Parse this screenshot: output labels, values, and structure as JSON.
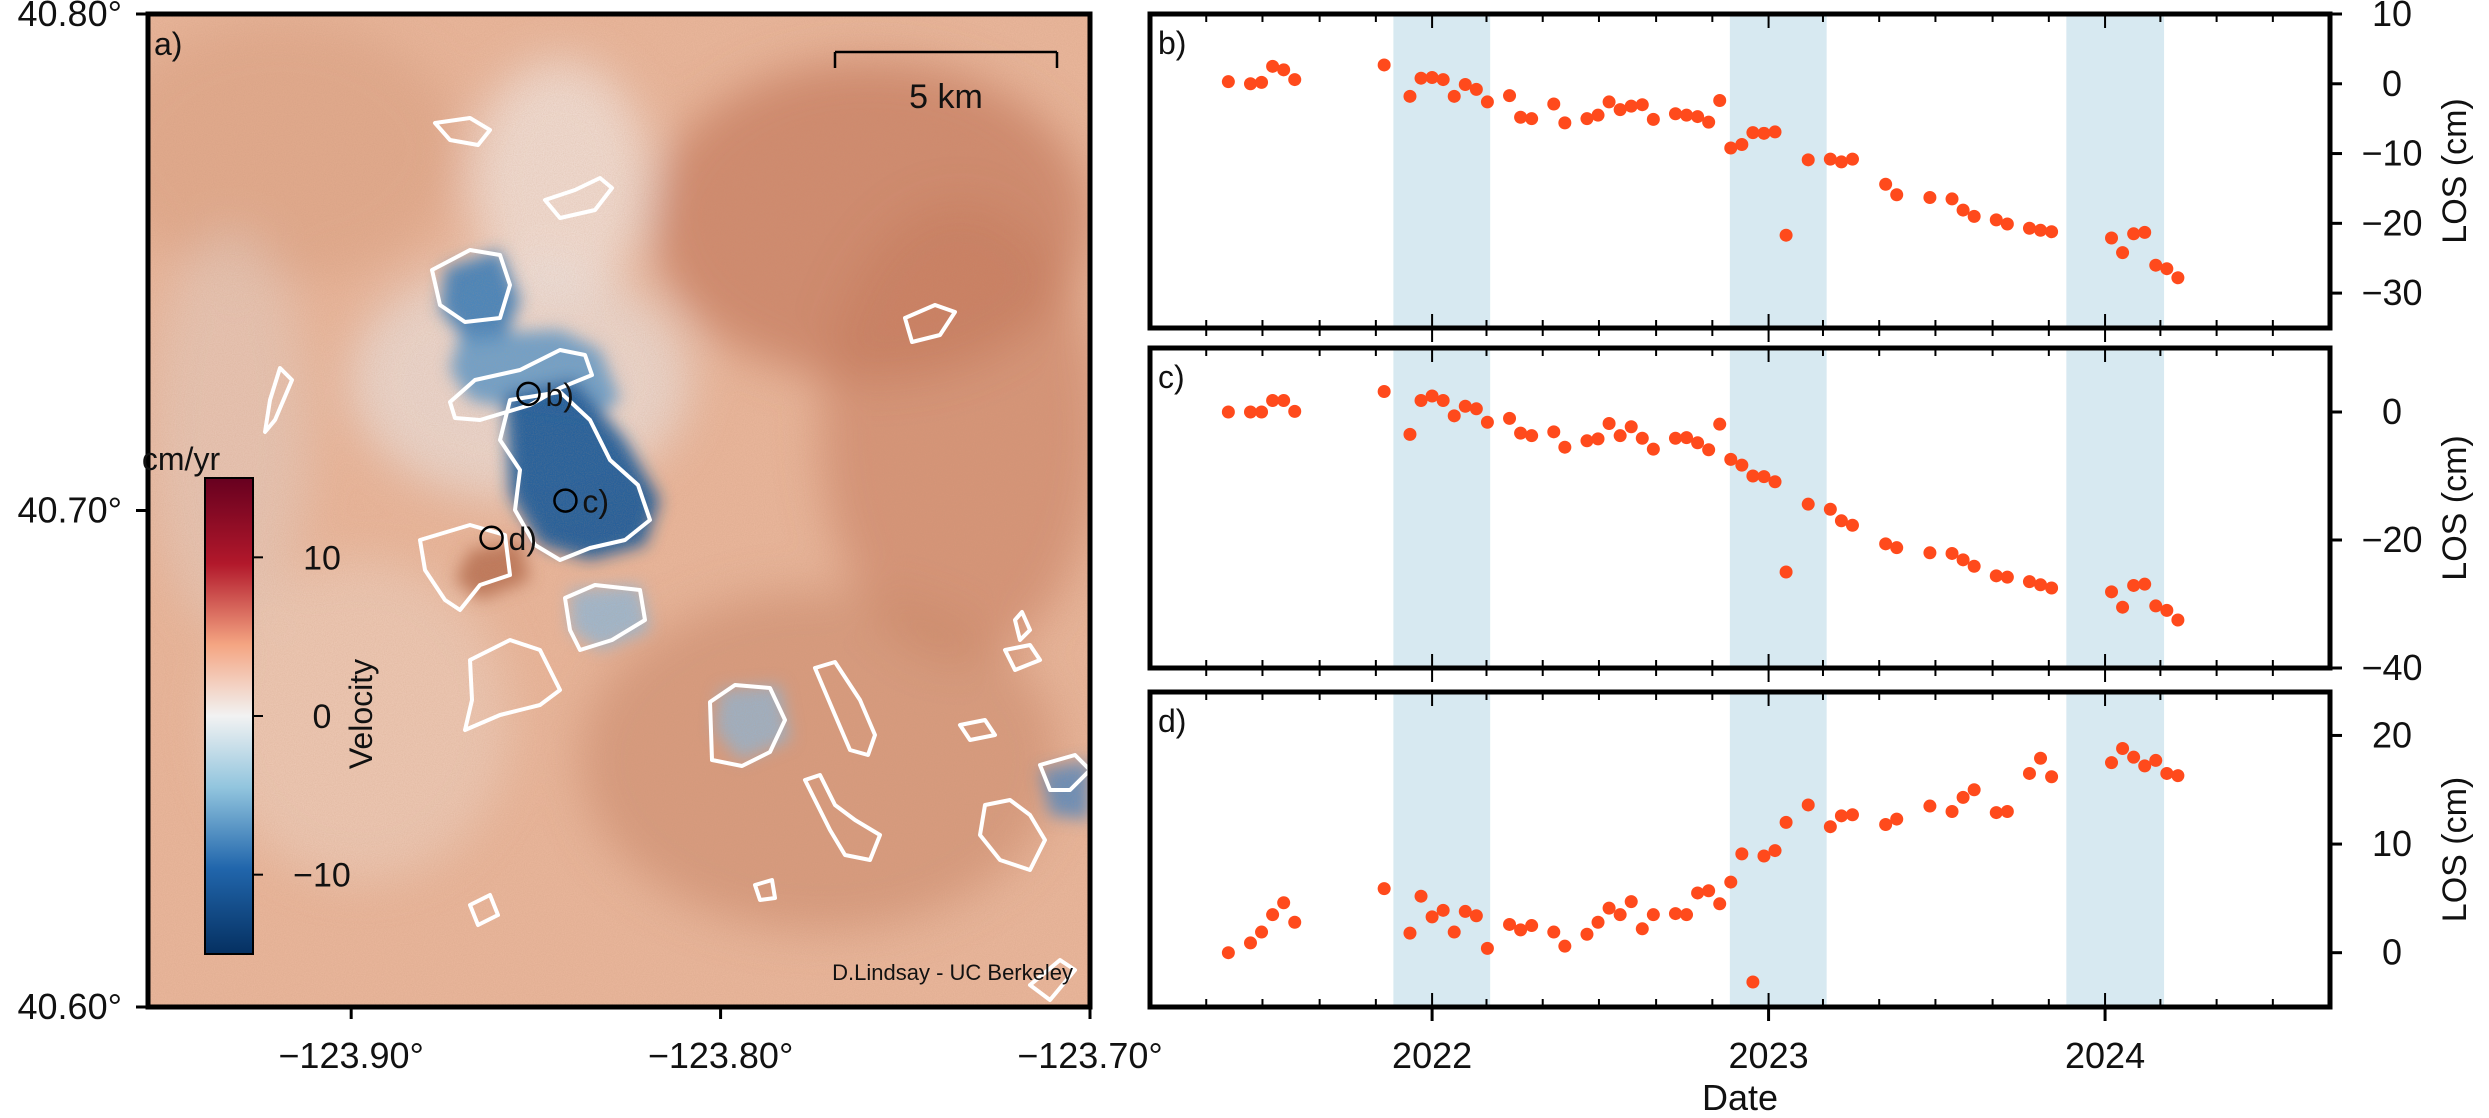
{
  "credit": "D.Lindsay - UC Berkeley",
  "colors": {
    "points": "#ff4a1c",
    "season": "#d7e9f1",
    "outline": "#ffffff",
    "cmap_neg": "#053061",
    "cmap_mid": "#f2f2f2",
    "cmap_pos": "#67001f"
  },
  "chart_data": [
    {
      "type": "heatmap",
      "panel_label": "a)",
      "title": "",
      "xlabel": "",
      "ylabel": "",
      "xlim": [
        -123.955,
        -123.7
      ],
      "ylim": [
        40.6,
        40.8
      ],
      "x_ticks": [
        -123.9,
        -123.8,
        -123.7
      ],
      "x_tick_labels": [
        "−123.90°",
        "−123.80°",
        "−123.70°"
      ],
      "y_ticks": [
        40.6,
        40.7,
        40.8
      ],
      "y_tick_labels": [
        "40.60°",
        "40.70°",
        "40.80°"
      ],
      "scale_bar_label": "5 km",
      "colorbar": {
        "label": "Velocity",
        "unit": "cm/yr",
        "range": [
          -15,
          15
        ],
        "ticks": [
          10,
          0,
          -10
        ],
        "tick_labels": [
          "10",
          "0",
          "−10"
        ]
      },
      "markers": [
        {
          "label": "b)",
          "lon": -123.852,
          "lat": 40.7235
        },
        {
          "label": "c)",
          "lon": -123.842,
          "lat": 40.702
        },
        {
          "label": "d)",
          "lon": -123.862,
          "lat": 40.6945
        }
      ]
    },
    {
      "type": "scatter",
      "panel_label": "b)",
      "ylabel": "LOS (cm)",
      "xlim": [
        "2021-03-01",
        "2024-09-01"
      ],
      "ylim": [
        -35,
        10
      ],
      "y_ticks": [
        10,
        0,
        -10,
        -20,
        -30
      ],
      "y_tick_labels": [
        "10",
        "0",
        "−10",
        "−20",
        "−30"
      ],
      "shaded_periods": [
        [
          "2021-11-20",
          "2022-03-05"
        ],
        [
          "2022-11-20",
          "2023-03-05"
        ],
        [
          "2023-11-20",
          "2024-03-05"
        ]
      ],
      "x": [
        "2021-05-25",
        "2021-06-18",
        "2021-06-30",
        "2021-07-12",
        "2021-07-24",
        "2021-08-05",
        "2021-11-10",
        "2021-12-08",
        "2021-12-20",
        "2022-01-01",
        "2022-01-13",
        "2022-01-25",
        "2022-02-06",
        "2022-02-18",
        "2022-03-02",
        "2022-03-26",
        "2022-04-07",
        "2022-04-19",
        "2022-05-13",
        "2022-05-25",
        "2022-06-18",
        "2022-06-30",
        "2022-07-12",
        "2022-07-24",
        "2022-08-05",
        "2022-08-17",
        "2022-08-29",
        "2022-09-22",
        "2022-10-04",
        "2022-10-16",
        "2022-10-28",
        "2022-11-09",
        "2022-11-21",
        "2022-12-03",
        "2022-12-15",
        "2022-12-27",
        "2023-01-08",
        "2023-01-20",
        "2023-02-13",
        "2023-03-09",
        "2023-03-21",
        "2023-04-02",
        "2023-05-08",
        "2023-05-20",
        "2023-06-25",
        "2023-07-19",
        "2023-07-31",
        "2023-08-12",
        "2023-09-05",
        "2023-09-17",
        "2023-10-11",
        "2023-10-23",
        "2023-11-04",
        "2024-01-08",
        "2024-01-20",
        "2024-02-01",
        "2024-02-13",
        "2024-02-25",
        "2024-03-08",
        "2024-03-20"
      ],
      "y": [
        0.3,
        0,
        0.2,
        2.5,
        2,
        0.6,
        2.7,
        -1.8,
        0.8,
        0.9,
        0.6,
        -1.8,
        -0.1,
        -0.8,
        -2.6,
        -1.7,
        -4.8,
        -5,
        -2.9,
        -5.6,
        -5,
        -4.5,
        -2.6,
        -3.7,
        -3.2,
        -3,
        -5.1,
        -4.3,
        -4.5,
        -4.7,
        -5.5,
        -2.4,
        -9.2,
        -8.7,
        -7,
        -7.1,
        -6.9,
        -21.7,
        -10.9,
        -10.8,
        -11.2,
        -10.8,
        -14.4,
        -15.9,
        -16.3,
        -16.5,
        -18.1,
        -19,
        -19.5,
        -20.1,
        -20.7,
        -21,
        -21.2,
        -22.1,
        -24.2,
        -21.5,
        -21.3,
        -26,
        -26.5,
        -27.8
      ]
    },
    {
      "type": "scatter",
      "panel_label": "c)",
      "ylabel": "LOS (cm)",
      "xlim": [
        "2021-03-01",
        "2024-09-01"
      ],
      "ylim": [
        -40,
        10
      ],
      "y_ticks": [
        0,
        -20,
        -40
      ],
      "y_tick_labels": [
        "0",
        "−20",
        "−40"
      ],
      "shaded_periods": [
        [
          "2021-11-20",
          "2022-03-05"
        ],
        [
          "2022-11-20",
          "2023-03-05"
        ],
        [
          "2023-11-20",
          "2024-03-05"
        ]
      ],
      "x": [
        "2021-05-25",
        "2021-06-18",
        "2021-06-30",
        "2021-07-12",
        "2021-07-24",
        "2021-08-05",
        "2021-11-10",
        "2021-12-08",
        "2021-12-20",
        "2022-01-01",
        "2022-01-13",
        "2022-01-25",
        "2022-02-06",
        "2022-02-18",
        "2022-03-02",
        "2022-03-26",
        "2022-04-07",
        "2022-04-19",
        "2022-05-13",
        "2022-05-25",
        "2022-06-18",
        "2022-06-30",
        "2022-07-12",
        "2022-07-24",
        "2022-08-05",
        "2022-08-17",
        "2022-08-29",
        "2022-09-22",
        "2022-10-04",
        "2022-10-16",
        "2022-10-28",
        "2022-11-09",
        "2022-11-21",
        "2022-12-03",
        "2022-12-15",
        "2022-12-27",
        "2023-01-08",
        "2023-01-20",
        "2023-02-13",
        "2023-03-09",
        "2023-03-21",
        "2023-04-02",
        "2023-05-08",
        "2023-05-20",
        "2023-06-25",
        "2023-07-19",
        "2023-07-31",
        "2023-08-12",
        "2023-09-05",
        "2023-09-17",
        "2023-10-11",
        "2023-10-23",
        "2023-11-04",
        "2024-01-08",
        "2024-01-20",
        "2024-02-01",
        "2024-02-13",
        "2024-02-25",
        "2024-03-08",
        "2024-03-20"
      ],
      "y": [
        0,
        0,
        0,
        1.8,
        1.8,
        0.1,
        3.2,
        -3.5,
        1.8,
        2.5,
        1.8,
        -0.6,
        0.9,
        0.5,
        -1.6,
        -1,
        -3.3,
        -3.7,
        -3.1,
        -5.5,
        -4.5,
        -4.2,
        -1.8,
        -3.7,
        -2.3,
        -4.1,
        -5.8,
        -4.1,
        -4,
        -4.8,
        -5.9,
        -1.9,
        -7.4,
        -8.3,
        -10,
        -10.1,
        -10.9,
        -25,
        -14.4,
        -15.2,
        -17,
        -17.7,
        -20.6,
        -21.2,
        -22,
        -22.1,
        -23.1,
        -24.1,
        -25.6,
        -25.8,
        -26.5,
        -27,
        -27.5,
        -28.1,
        -30.5,
        -27.1,
        -26.9,
        -30.3,
        -31,
        -32.5
      ]
    },
    {
      "type": "scatter",
      "panel_label": "d)",
      "ylabel": "LOS (cm)",
      "xlabel": "Date",
      "xlim": [
        "2021-03-01",
        "2024-09-01"
      ],
      "ylim": [
        -5,
        24
      ],
      "y_ticks": [
        20,
        10,
        0
      ],
      "y_tick_labels": [
        "20",
        "10",
        "0"
      ],
      "x_ticks": [
        "2022-01-01",
        "2023-01-01",
        "2024-01-01"
      ],
      "x_tick_labels": [
        "2022",
        "2023",
        "2024"
      ],
      "shaded_periods": [
        [
          "2021-11-20",
          "2022-03-05"
        ],
        [
          "2022-11-20",
          "2023-03-05"
        ],
        [
          "2023-11-20",
          "2024-03-05"
        ]
      ],
      "x": [
        "2021-05-25",
        "2021-06-18",
        "2021-06-30",
        "2021-07-12",
        "2021-07-24",
        "2021-08-05",
        "2021-11-10",
        "2021-12-08",
        "2021-12-20",
        "2022-01-01",
        "2022-01-13",
        "2022-01-25",
        "2022-02-06",
        "2022-02-18",
        "2022-03-02",
        "2022-03-26",
        "2022-04-07",
        "2022-04-19",
        "2022-05-13",
        "2022-05-25",
        "2022-06-18",
        "2022-06-30",
        "2022-07-12",
        "2022-07-24",
        "2022-08-05",
        "2022-08-17",
        "2022-08-29",
        "2022-09-22",
        "2022-10-04",
        "2022-10-16",
        "2022-10-28",
        "2022-11-09",
        "2022-11-21",
        "2022-12-03",
        "2022-12-15",
        "2022-12-27",
        "2023-01-08",
        "2023-01-20",
        "2023-02-13",
        "2023-03-09",
        "2023-03-21",
        "2023-04-02",
        "2023-05-08",
        "2023-05-20",
        "2023-06-25",
        "2023-07-19",
        "2023-07-31",
        "2023-08-12",
        "2023-09-05",
        "2023-09-17",
        "2023-10-11",
        "2023-10-23",
        "2023-11-04",
        "2024-01-08",
        "2024-01-20",
        "2024-02-01",
        "2024-02-13",
        "2024-02-25",
        "2024-03-08",
        "2024-03-20"
      ],
      "y": [
        0,
        0.9,
        1.9,
        3.5,
        4.6,
        2.8,
        5.9,
        1.8,
        5.2,
        3.3,
        3.9,
        1.9,
        3.8,
        3.4,
        0.4,
        2.6,
        2.1,
        2.5,
        1.9,
        0.6,
        1.7,
        2.8,
        4.1,
        3.5,
        4.7,
        2.2,
        3.5,
        3.6,
        3.5,
        5.5,
        5.7,
        4.5,
        6.5,
        9.1,
        -2.7,
        8.9,
        9.4,
        12,
        13.6,
        11.6,
        12.6,
        12.7,
        11.8,
        12.3,
        13.5,
        13,
        14.3,
        15,
        12.9,
        13,
        16.5,
        17.9,
        16.2,
        17.5,
        18.8,
        18,
        17.2,
        17.7,
        16.5,
        16.3
      ]
    }
  ]
}
